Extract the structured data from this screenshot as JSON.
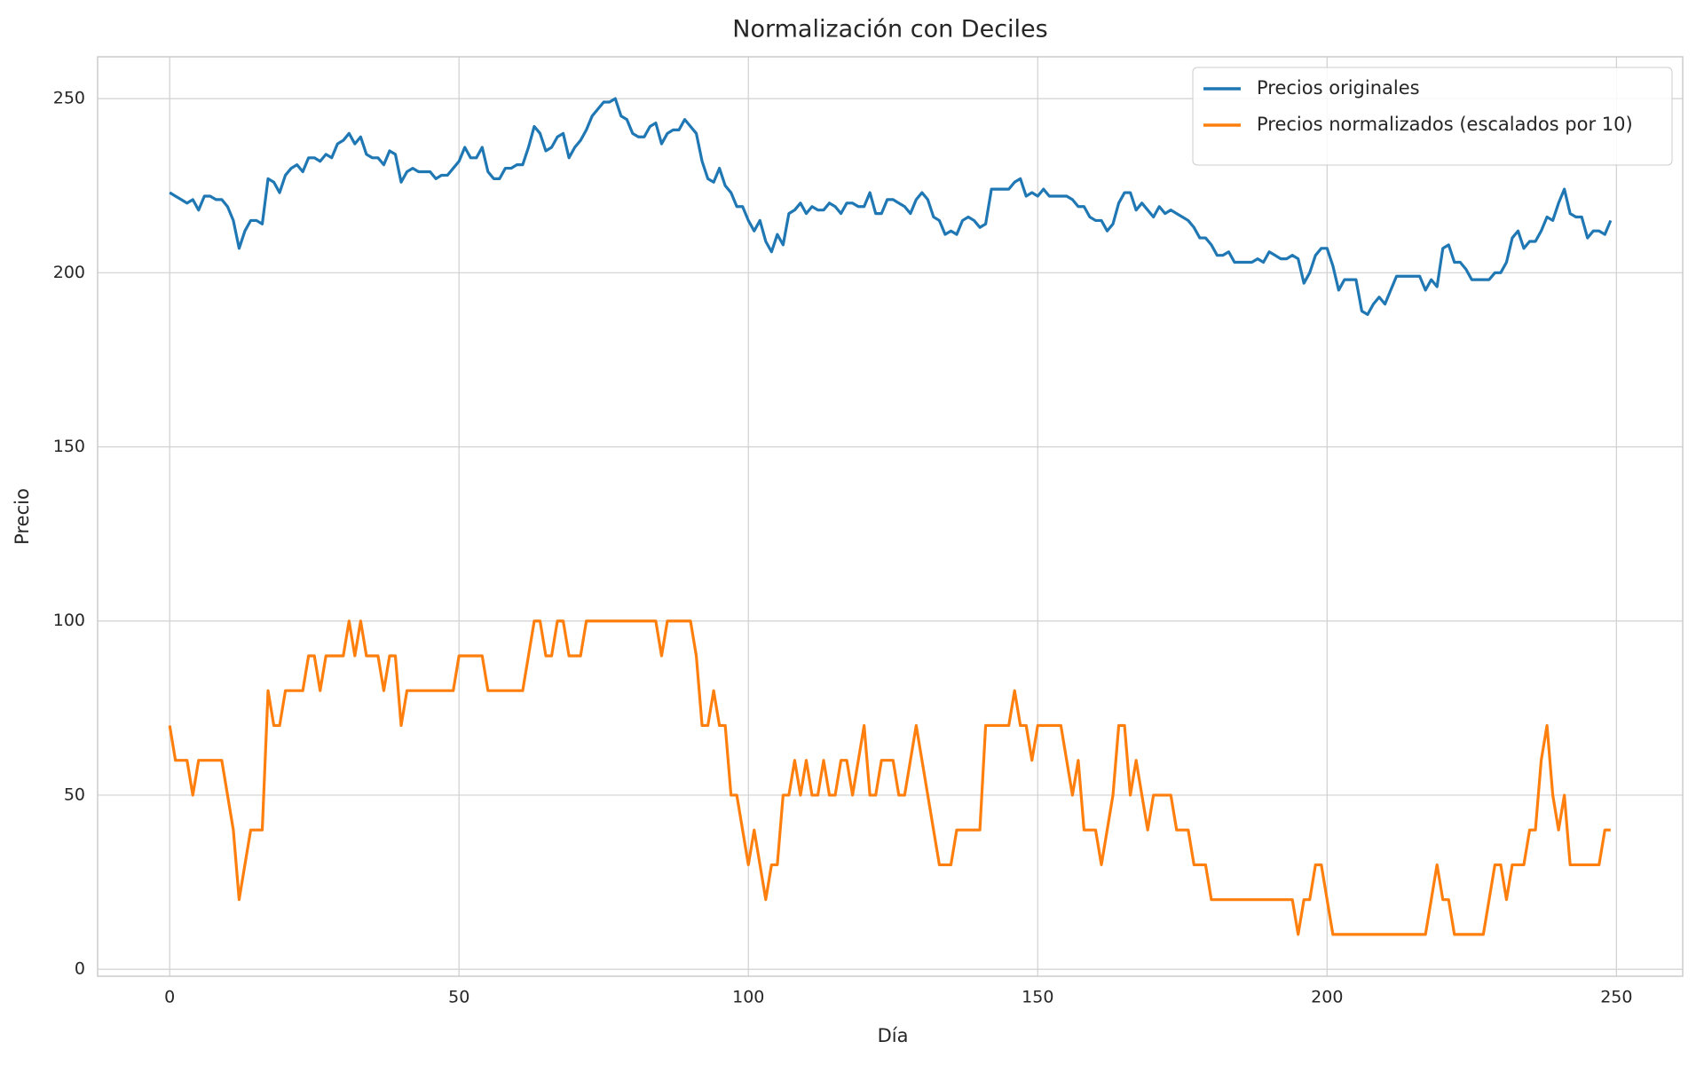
{
  "chart_data": {
    "type": "line",
    "title": "Normalización con Deciles",
    "x_label": "Día",
    "y_label": "Precio",
    "x": [
      0,
      1,
      2,
      3,
      4,
      5,
      6,
      7,
      8,
      9,
      10,
      11,
      12,
      13,
      14,
      15,
      16,
      17,
      18,
      19,
      20,
      21,
      22,
      23,
      24,
      25,
      26,
      27,
      28,
      29,
      30,
      31,
      32,
      33,
      34,
      35,
      36,
      37,
      38,
      39,
      40,
      41,
      42,
      43,
      44,
      45,
      46,
      47,
      48,
      49,
      50,
      51,
      52,
      53,
      54,
      55,
      56,
      57,
      58,
      59,
      60,
      61,
      62,
      63,
      64,
      65,
      66,
      67,
      68,
      69,
      70,
      71,
      72,
      73,
      74,
      75,
      76,
      77,
      78,
      79,
      80,
      81,
      82,
      83,
      84,
      85,
      86,
      87,
      88,
      89,
      90,
      91,
      92,
      93,
      94,
      95,
      96,
      97,
      98,
      99,
      100,
      101,
      102,
      103,
      104,
      105,
      106,
      107,
      108,
      109,
      110,
      111,
      112,
      113,
      114,
      115,
      116,
      117,
      118,
      119,
      120,
      121,
      122,
      123,
      124,
      125,
      126,
      127,
      128,
      129,
      130,
      131,
      132,
      133,
      134,
      135,
      136,
      137,
      138,
      139,
      140,
      141,
      142,
      143,
      144,
      145,
      146,
      147,
      148,
      149,
      150,
      151,
      152,
      153,
      154,
      155,
      156,
      157,
      158,
      159,
      160,
      161,
      162,
      163,
      164,
      165,
      166,
      167,
      168,
      169,
      170,
      171,
      172,
      173,
      174,
      175,
      176,
      177,
      178,
      179,
      180,
      181,
      182,
      183,
      184,
      185,
      186,
      187,
      188,
      189,
      190,
      191,
      192,
      193,
      194,
      195,
      196,
      197,
      198,
      199,
      200,
      201,
      202,
      203,
      204,
      205,
      206,
      207,
      208,
      209,
      210,
      211,
      212,
      213,
      214,
      215,
      216,
      217,
      218,
      219,
      220,
      221,
      222,
      223,
      224,
      225,
      226,
      227,
      228,
      229,
      230,
      231,
      232,
      233,
      234,
      235,
      236,
      237,
      238,
      239,
      240,
      241,
      242,
      243,
      244,
      245,
      246,
      247,
      248,
      249
    ],
    "series": [
      {
        "name": "Precios originales",
        "color": "#1f77b4",
        "values": [
          223,
          222,
          221,
          220,
          221,
          218,
          222,
          222,
          221,
          221,
          219,
          215,
          207,
          212,
          215,
          215,
          214,
          227,
          226,
          223,
          228,
          230,
          231,
          229,
          233,
          233,
          232,
          234,
          233,
          237,
          238,
          240,
          237,
          239,
          234,
          233,
          233,
          231,
          235,
          234,
          226,
          229,
          230,
          229,
          229,
          229,
          227,
          228,
          228,
          230,
          232,
          236,
          233,
          233,
          236,
          229,
          227,
          227,
          230,
          230,
          231,
          231,
          236,
          242,
          240,
          235,
          236,
          239,
          240,
          233,
          236,
          238,
          241,
          245,
          247,
          249,
          249,
          250,
          245,
          244,
          240,
          239,
          239,
          242,
          243,
          237,
          240,
          241,
          241,
          244,
          242,
          240,
          232,
          227,
          226,
          230,
          225,
          223,
          219,
          219,
          215,
          212,
          215,
          209,
          206,
          211,
          208,
          217,
          218,
          220,
          217,
          219,
          218,
          218,
          220,
          219,
          217,
          220,
          220,
          219,
          219,
          223,
          217,
          217,
          221,
          221,
          220,
          219,
          217,
          221,
          223,
          221,
          216,
          215,
          211,
          212,
          211,
          215,
          216,
          215,
          213,
          214,
          224,
          224,
          224,
          224,
          226,
          227,
          222,
          223,
          222,
          224,
          222,
          222,
          222,
          222,
          221,
          219,
          219,
          216,
          215,
          215,
          212,
          214,
          220,
          223,
          223,
          218,
          220,
          218,
          216,
          219,
          217,
          218,
          217,
          216,
          215,
          213,
          210,
          210,
          208,
          205,
          205,
          206,
          203,
          203,
          203,
          203,
          204,
          203,
          206,
          205,
          204,
          204,
          205,
          204,
          197,
          200,
          205,
          207,
          207,
          202,
          195,
          198,
          198,
          198,
          189,
          188,
          191,
          193,
          191,
          195,
          199,
          199,
          199,
          199,
          199,
          195,
          198,
          196,
          207,
          208,
          203,
          203,
          201,
          198,
          198,
          198,
          198,
          200,
          200,
          203,
          210,
          212,
          207,
          209,
          209,
          212,
          216,
          215,
          220,
          224,
          217,
          216,
          216,
          210,
          212,
          212,
          211,
          215
        ]
      },
      {
        "name": "Precios normalizados (escalados por 10)",
        "color": "#ff7f0e",
        "values": [
          70,
          60,
          60,
          60,
          50,
          60,
          60,
          60,
          60,
          60,
          50,
          40,
          20,
          30,
          40,
          40,
          40,
          80,
          70,
          70,
          80,
          80,
          80,
          80,
          90,
          90,
          80,
          90,
          90,
          90,
          90,
          100,
          90,
          100,
          90,
          90,
          90,
          80,
          90,
          90,
          70,
          80,
          80,
          80,
          80,
          80,
          80,
          80,
          80,
          80,
          90,
          90,
          90,
          90,
          90,
          80,
          80,
          80,
          80,
          80,
          80,
          80,
          90,
          100,
          100,
          90,
          90,
          100,
          100,
          90,
          90,
          90,
          100,
          100,
          100,
          100,
          100,
          100,
          100,
          100,
          100,
          100,
          100,
          100,
          100,
          90,
          100,
          100,
          100,
          100,
          100,
          90,
          70,
          70,
          80,
          70,
          70,
          50,
          50,
          40,
          30,
          40,
          30,
          20,
          30,
          30,
          50,
          50,
          60,
          50,
          60,
          50,
          50,
          60,
          50,
          50,
          60,
          60,
          50,
          60,
          70,
          50,
          50,
          60,
          60,
          60,
          50,
          50,
          60,
          70,
          60,
          50,
          40,
          30,
          30,
          30,
          40,
          40,
          40,
          40,
          40,
          70,
          70,
          70,
          70,
          70,
          80,
          70,
          70,
          60,
          70,
          70,
          70,
          70,
          70,
          60,
          50,
          60,
          40,
          40,
          40,
          30,
          40,
          50,
          70,
          70,
          50,
          60,
          50,
          40,
          50,
          50,
          50,
          50,
          40,
          40,
          40,
          30,
          30,
          30,
          20,
          20,
          20,
          20,
          20,
          20,
          20,
          20,
          20,
          20,
          20,
          20,
          20,
          20,
          20,
          10,
          20,
          20,
          30,
          30,
          20,
          10,
          10,
          10,
          10,
          10,
          10,
          10,
          10,
          10,
          10,
          10,
          10,
          10,
          10,
          10,
          10,
          10,
          20,
          30,
          20,
          20,
          10,
          10,
          10,
          10,
          10,
          10,
          20,
          30,
          30,
          20,
          30,
          30,
          30,
          40,
          40,
          60,
          70,
          50,
          40,
          50,
          30,
          30,
          30,
          30,
          30,
          30,
          40,
          40
        ]
      }
    ],
    "xlim": [
      -12.45,
      261.45
    ],
    "ylim": [
      -2,
      262
    ],
    "xticks": [
      0,
      50,
      100,
      150,
      200,
      250
    ],
    "yticks": [
      0,
      50,
      100,
      150,
      200,
      250
    ],
    "grid": true,
    "legend": "upper right"
  }
}
